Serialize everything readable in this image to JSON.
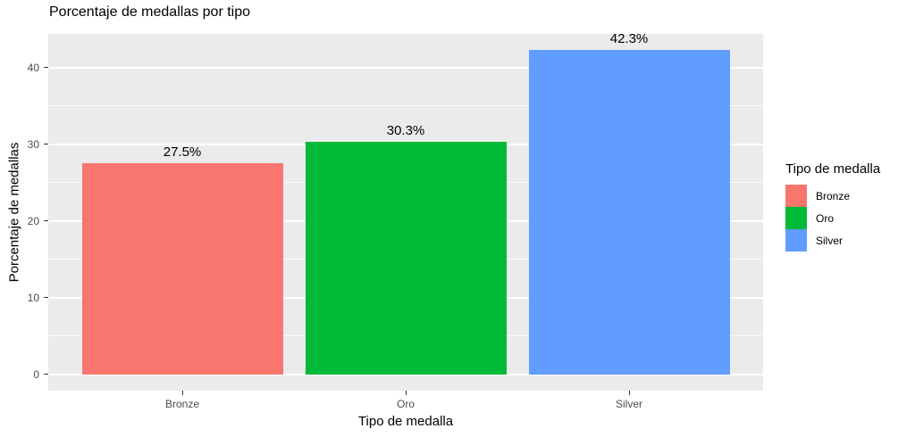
{
  "chart_data": {
    "type": "bar",
    "title": "Porcentaje de medallas por tipo",
    "xlabel": "Tipo de medalla",
    "ylabel": "Porcentaje de medallas",
    "categories": [
      "Bronze",
      "Oro",
      "Silver"
    ],
    "values": [
      27.5,
      30.3,
      42.3
    ],
    "bar_labels": [
      "27.5%",
      "30.3%",
      "42.3%"
    ],
    "bar_colors": [
      "#F8766D",
      "#00BA38",
      "#619CFF"
    ],
    "y_ticks": [
      0,
      10,
      20,
      30,
      40
    ],
    "y_minor_ticks": [
      5,
      15,
      25,
      35
    ],
    "ylim": [
      0,
      42.3
    ],
    "y_range_display": [
      -2.12,
      44.42
    ],
    "grid": "on",
    "panel_background": "#EBEBEB",
    "gridline_color": "#FFFFFF",
    "axis_text_color": "#4D4D4D",
    "legend": {
      "title": "Tipo de medalla",
      "position": "right",
      "entries": [
        {
          "label": "Bronze",
          "color": "#F8766D"
        },
        {
          "label": "Oro",
          "color": "#00BA38"
        },
        {
          "label": "Silver",
          "color": "#619CFF"
        }
      ]
    }
  }
}
